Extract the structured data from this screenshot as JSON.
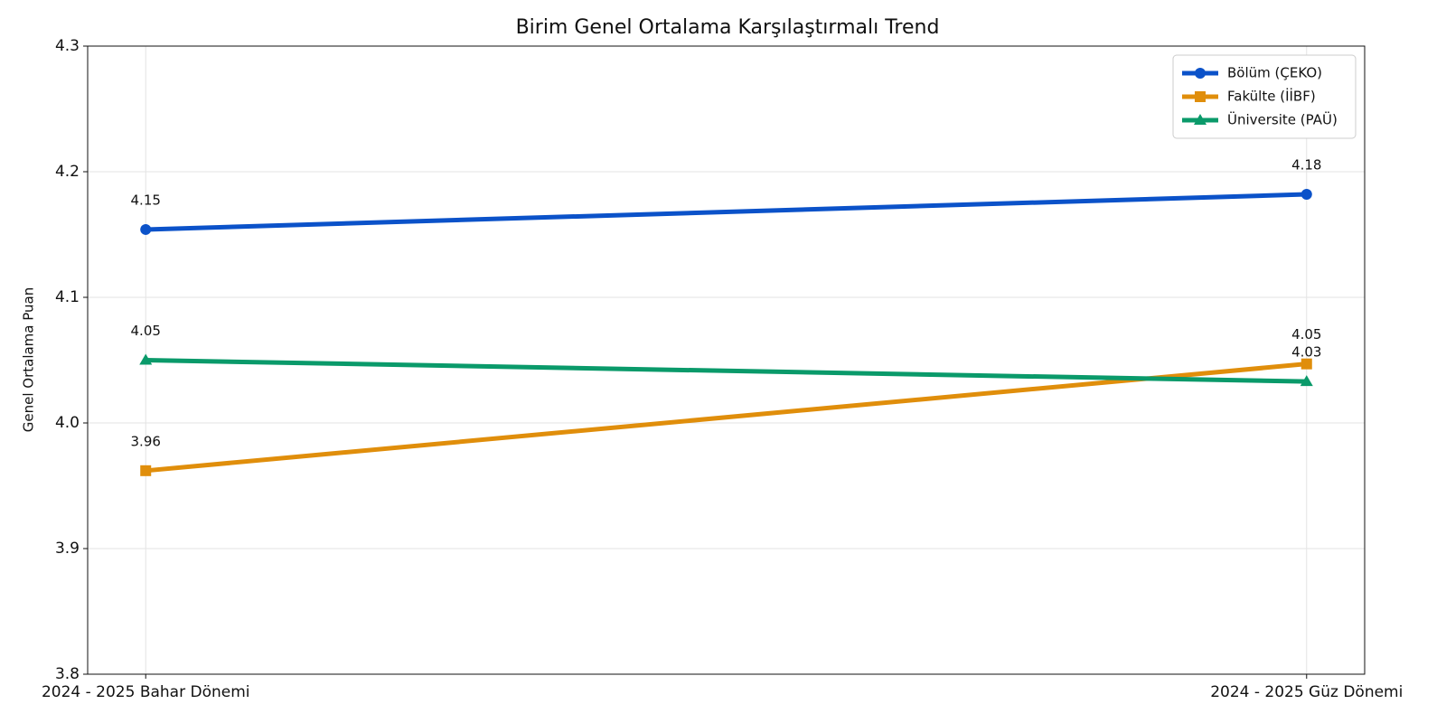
{
  "chart_data": {
    "type": "line",
    "title": "Birim Genel Ortalama Karşılaştırmalı Trend",
    "y_label": "Genel Ortalama Puan",
    "categories": [
      "2024 - 2025 Bahar Dönemi",
      "2024 - 2025 Güz Dönemi"
    ],
    "series": [
      {
        "name": "Bölüm (ÇEKO)",
        "color": "#0b52c9",
        "marker": "circle",
        "values": [
          4.154,
          4.182
        ],
        "value_labels": [
          "4.15",
          "4.18"
        ]
      },
      {
        "name": "Fakülte (İİBF)",
        "color": "#e08e0b",
        "marker": "square",
        "values": [
          3.962,
          4.047
        ],
        "value_labels": [
          "3.96",
          "4.05"
        ]
      },
      {
        "name": "Üniversite (PAÜ)",
        "color": "#0a9a6a",
        "marker": "triangle",
        "values": [
          4.05,
          4.033
        ],
        "value_labels": [
          "4.05",
          "4.03"
        ]
      }
    ],
    "ylim": [
      3.8,
      4.3
    ],
    "yticks": [
      3.8,
      3.9,
      {
        "value": 4,
        "label": "4.0"
      },
      4.1,
      4.2,
      4.3
    ],
    "grid": true,
    "legend": "upper right"
  }
}
